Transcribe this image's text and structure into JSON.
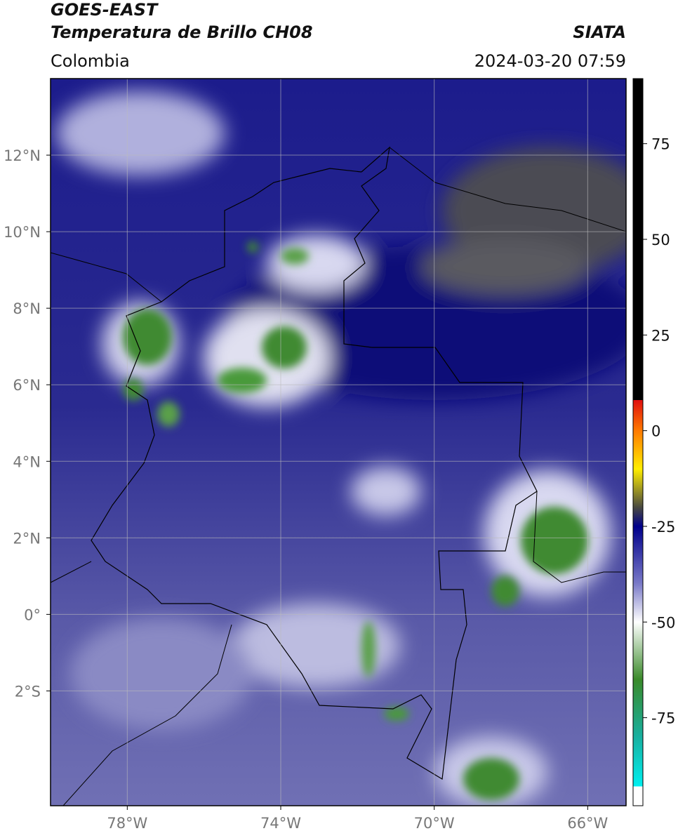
{
  "header": {
    "satellite": "GOES-EAST",
    "product": "Temperatura de Brillo CH08",
    "source": "SIATA",
    "region": "Colombia",
    "timestamp": "2024-03-20 07:59"
  },
  "map": {
    "lonlim": [
      -80,
      -65
    ],
    "latlim": [
      -5,
      14
    ],
    "lat_ticks": [
      {
        "value": 12,
        "label": "12°N"
      },
      {
        "value": 10,
        "label": "10°N"
      },
      {
        "value": 8,
        "label": "8°N"
      },
      {
        "value": 6,
        "label": "6°N"
      },
      {
        "value": 4,
        "label": "4°N"
      },
      {
        "value": 2,
        "label": "2°N"
      },
      {
        "value": 0,
        "label": "0°"
      },
      {
        "value": -2,
        "label": "2°S"
      }
    ],
    "lon_ticks": [
      {
        "value": -78,
        "label": "78°W"
      },
      {
        "value": -74,
        "label": "74°W"
      },
      {
        "value": -70,
        "label": "70°W"
      },
      {
        "value": -66,
        "label": "66°W"
      }
    ]
  },
  "colorbar": {
    "clim": [
      -98,
      92
    ],
    "ticks": [
      75,
      50,
      25,
      0,
      -25,
      -50,
      -75
    ],
    "stops": [
      {
        "value": 92,
        "color": "#000000"
      },
      {
        "value": 8,
        "color": "#000000"
      },
      {
        "value": 8,
        "color": "#e01010"
      },
      {
        "value": 0,
        "color": "#ff7a00"
      },
      {
        "value": -10,
        "color": "#ffee00"
      },
      {
        "value": -20,
        "color": "#4a4a40"
      },
      {
        "value": -25,
        "color": "#00008b"
      },
      {
        "value": -40,
        "color": "#7a7ac8"
      },
      {
        "value": -50,
        "color": "#ffffff"
      },
      {
        "value": -65,
        "color": "#3a8a2a"
      },
      {
        "value": -80,
        "color": "#18b0a0"
      },
      {
        "value": -93,
        "color": "#00f0f0"
      },
      {
        "value": -93,
        "color": "#ffffff"
      },
      {
        "value": -98,
        "color": "#ffffff"
      }
    ]
  }
}
